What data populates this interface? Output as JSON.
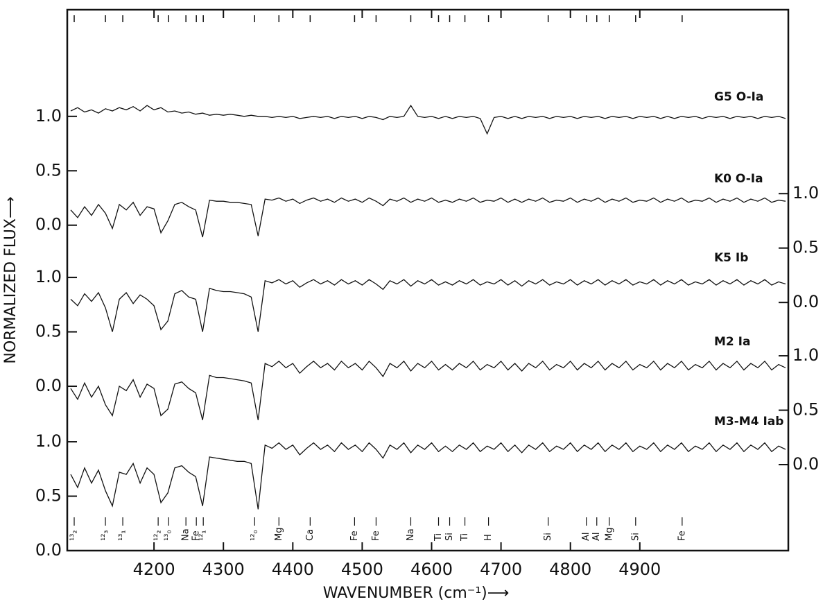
{
  "chart_data": {
    "type": "line",
    "xlabel": "WAVENUMBER (cm⁻¹)⟶",
    "ylabel": "NORMALIZED FLUX⟶",
    "xlim": [
      4075,
      5114
    ],
    "xticks": [
      4200,
      4300,
      4400,
      4500,
      4600,
      4700,
      4800,
      4900
    ],
    "x": [
      4080,
      4090,
      4100,
      4110,
      4120,
      4130,
      4140,
      4150,
      4160,
      4170,
      4180,
      4190,
      4200,
      4210,
      4220,
      4230,
      4240,
      4250,
      4260,
      4270,
      4280,
      4290,
      4300,
      4310,
      4320,
      4330,
      4340,
      4350,
      4360,
      4370,
      4380,
      4390,
      4400,
      4410,
      4420,
      4430,
      4440,
      4450,
      4460,
      4470,
      4480,
      4490,
      4500,
      4510,
      4520,
      4530,
      4540,
      4550,
      4560,
      4570,
      4580,
      4590,
      4600,
      4610,
      4620,
      4630,
      4640,
      4650,
      4660,
      4670,
      4680,
      4690,
      4700,
      4710,
      4720,
      4730,
      4740,
      4750,
      4760,
      4770,
      4780,
      4790,
      4800,
      4810,
      4820,
      4830,
      4840,
      4850,
      4860,
      4870,
      4880,
      4890,
      4900,
      4910,
      4920,
      4930,
      4940,
      4950,
      4960,
      4970,
      4980,
      4990,
      5000,
      5010,
      5020,
      5030,
      5040,
      5050,
      5060,
      5070,
      5080,
      5090,
      5100,
      5110
    ],
    "series": [
      {
        "name": "G5 O-Ia",
        "color": "#111111",
        "axis": "y",
        "ylim": [
          -2.99,
          1.98
        ],
        "yticks": [
          {
            "value": 0,
            "label": "0.0"
          },
          0.5,
          {
            "value": 1,
            "label": "1.0"
          }
        ],
        "values": [
          1.05,
          1.08,
          1.04,
          1.06,
          1.03,
          1.07,
          1.05,
          1.08,
          1.06,
          1.09,
          1.05,
          1.1,
          1.06,
          1.08,
          1.04,
          1.05,
          1.03,
          1.04,
          1.02,
          1.03,
          1.01,
          1.02,
          1.01,
          1.02,
          1.01,
          1.0,
          1.01,
          1.0,
          1.0,
          0.99,
          1.0,
          0.99,
          1.0,
          0.98,
          0.99,
          1.0,
          0.99,
          1.0,
          0.98,
          1.0,
          0.99,
          1.0,
          0.98,
          1.0,
          0.99,
          0.97,
          1.0,
          0.99,
          1.0,
          1.1,
          1.0,
          0.99,
          1.0,
          0.98,
          1.0,
          0.98,
          1.0,
          0.99,
          1.0,
          0.98,
          0.84,
          0.99,
          1.0,
          0.98,
          1.0,
          0.98,
          1.0,
          0.99,
          1.0,
          0.98,
          1.0,
          0.99,
          1.0,
          0.98,
          1.0,
          0.99,
          1.0,
          0.98,
          1.0,
          0.99,
          1.0,
          0.98,
          1.0,
          0.99,
          1.0,
          0.98,
          1.0,
          0.98,
          1.0,
          0.99,
          1.0,
          0.98,
          1.0,
          0.99,
          1.0,
          0.98,
          1.0,
          0.99,
          1.0,
          0.98,
          1.0,
          0.99,
          1.0,
          0.98
        ]
      },
      {
        "name": "K0 O-Ia",
        "color": "#111111",
        "axis": "y2",
        "ylim": [
          -2.28,
          2.69
        ],
        "yticks": [
          {
            "value": 0,
            "label": "0.0"
          },
          0.5,
          {
            "value": 1,
            "label": "1.0"
          }
        ],
        "values": [
          0.85,
          0.78,
          0.88,
          0.8,
          0.9,
          0.82,
          0.68,
          0.9,
          0.85,
          0.92,
          0.8,
          0.88,
          0.86,
          0.64,
          0.75,
          0.9,
          0.92,
          0.88,
          0.85,
          0.6,
          0.94,
          0.93,
          0.93,
          0.92,
          0.92,
          0.91,
          0.9,
          0.61,
          0.95,
          0.94,
          0.96,
          0.93,
          0.95,
          0.91,
          0.94,
          0.96,
          0.93,
          0.95,
          0.92,
          0.96,
          0.93,
          0.95,
          0.92,
          0.96,
          0.93,
          0.89,
          0.95,
          0.93,
          0.96,
          0.92,
          0.95,
          0.93,
          0.96,
          0.92,
          0.94,
          0.92,
          0.95,
          0.93,
          0.96,
          0.92,
          0.94,
          0.93,
          0.96,
          0.92,
          0.95,
          0.92,
          0.95,
          0.93,
          0.96,
          0.92,
          0.94,
          0.93,
          0.96,
          0.92,
          0.95,
          0.93,
          0.96,
          0.92,
          0.95,
          0.93,
          0.96,
          0.92,
          0.94,
          0.93,
          0.96,
          0.92,
          0.95,
          0.93,
          0.96,
          0.92,
          0.94,
          0.93,
          0.96,
          0.92,
          0.95,
          0.93,
          0.96,
          0.92,
          0.95,
          0.93,
          0.96,
          0.92,
          0.94,
          0.93
        ]
      },
      {
        "name": "K5 Ib",
        "color": "#111111",
        "axis": "y",
        "ylim": [
          -1.51,
          3.46
        ],
        "yticks": [
          {
            "value": 0,
            "label": "0.0"
          },
          0.5,
          {
            "value": 1,
            "label": "1.0"
          }
        ],
        "values": [
          0.8,
          0.74,
          0.85,
          0.78,
          0.86,
          0.72,
          0.5,
          0.8,
          0.86,
          0.76,
          0.84,
          0.8,
          0.74,
          0.52,
          0.6,
          0.85,
          0.88,
          0.82,
          0.8,
          0.5,
          0.9,
          0.88,
          0.87,
          0.87,
          0.86,
          0.85,
          0.82,
          0.5,
          0.97,
          0.95,
          0.98,
          0.94,
          0.97,
          0.91,
          0.95,
          0.98,
          0.94,
          0.97,
          0.93,
          0.98,
          0.94,
          0.97,
          0.93,
          0.98,
          0.94,
          0.89,
          0.97,
          0.94,
          0.98,
          0.92,
          0.97,
          0.94,
          0.98,
          0.93,
          0.96,
          0.93,
          0.97,
          0.94,
          0.98,
          0.93,
          0.96,
          0.94,
          0.98,
          0.93,
          0.97,
          0.92,
          0.97,
          0.94,
          0.98,
          0.93,
          0.96,
          0.94,
          0.98,
          0.93,
          0.97,
          0.94,
          0.98,
          0.93,
          0.97,
          0.94,
          0.98,
          0.93,
          0.96,
          0.94,
          0.98,
          0.93,
          0.97,
          0.94,
          0.98,
          0.93,
          0.96,
          0.94,
          0.98,
          0.93,
          0.97,
          0.94,
          0.98,
          0.93,
          0.97,
          0.94,
          0.98,
          0.93,
          0.96,
          0.94
        ]
      },
      {
        "name": "M2 Ia",
        "color": "#111111",
        "axis": "y2",
        "ylim": [
          -0.79,
          4.18
        ],
        "yticks": [
          {
            "value": 0,
            "label": "0.0"
          },
          0.5,
          {
            "value": 1,
            "label": "1.0"
          }
        ],
        "values": [
          0.7,
          0.6,
          0.75,
          0.62,
          0.72,
          0.55,
          0.45,
          0.72,
          0.68,
          0.78,
          0.62,
          0.74,
          0.7,
          0.45,
          0.51,
          0.74,
          0.76,
          0.7,
          0.66,
          0.41,
          0.82,
          0.8,
          0.8,
          0.79,
          0.78,
          0.77,
          0.75,
          0.41,
          0.93,
          0.9,
          0.95,
          0.89,
          0.93,
          0.84,
          0.9,
          0.95,
          0.89,
          0.93,
          0.87,
          0.95,
          0.89,
          0.93,
          0.87,
          0.95,
          0.89,
          0.81,
          0.93,
          0.89,
          0.95,
          0.86,
          0.93,
          0.89,
          0.95,
          0.87,
          0.92,
          0.87,
          0.93,
          0.89,
          0.95,
          0.87,
          0.92,
          0.89,
          0.95,
          0.87,
          0.93,
          0.86,
          0.93,
          0.89,
          0.95,
          0.87,
          0.92,
          0.89,
          0.95,
          0.87,
          0.93,
          0.89,
          0.95,
          0.87,
          0.93,
          0.89,
          0.95,
          0.87,
          0.92,
          0.89,
          0.95,
          0.87,
          0.93,
          0.89,
          0.95,
          0.87,
          0.92,
          0.89,
          0.95,
          0.87,
          0.93,
          0.89,
          0.95,
          0.87,
          0.93,
          0.89,
          0.95,
          0.87,
          0.92,
          0.89
        ]
      },
      {
        "name": "M3-M4 Iab",
        "color": "#111111",
        "axis": "y",
        "ylim": [
          0,
          4.97
        ],
        "yticks": [
          {
            "value": 0,
            "label": "0.0"
          },
          0.5,
          {
            "value": 1,
            "label": "1.0"
          }
        ],
        "values": [
          0.7,
          0.58,
          0.76,
          0.62,
          0.74,
          0.55,
          0.41,
          0.72,
          0.7,
          0.8,
          0.62,
          0.76,
          0.7,
          0.44,
          0.53,
          0.76,
          0.78,
          0.72,
          0.68,
          0.41,
          0.86,
          0.85,
          0.84,
          0.83,
          0.82,
          0.82,
          0.8,
          0.38,
          0.97,
          0.94,
          0.99,
          0.93,
          0.97,
          0.88,
          0.94,
          0.99,
          0.93,
          0.97,
          0.91,
          0.99,
          0.93,
          0.97,
          0.91,
          0.99,
          0.93,
          0.85,
          0.97,
          0.93,
          0.99,
          0.9,
          0.97,
          0.93,
          0.99,
          0.91,
          0.96,
          0.91,
          0.97,
          0.93,
          0.99,
          0.91,
          0.96,
          0.93,
          0.99,
          0.91,
          0.97,
          0.9,
          0.97,
          0.93,
          0.99,
          0.91,
          0.96,
          0.93,
          0.99,
          0.91,
          0.97,
          0.93,
          0.99,
          0.91,
          0.97,
          0.93,
          0.99,
          0.91,
          0.96,
          0.93,
          0.99,
          0.91,
          0.97,
          0.93,
          0.99,
          0.91,
          0.96,
          0.93,
          0.99,
          0.91,
          0.97,
          0.93,
          0.99,
          0.91,
          0.97,
          0.93,
          0.99,
          0.91,
          0.96,
          0.93
        ]
      }
    ],
    "annotations": [
      {
        "label": "¹³₂",
        "x": 4085
      },
      {
        "label": "¹²₃",
        "x": 4130
      },
      {
        "label": "¹³₁",
        "x": 4155
      },
      {
        "label": "¹²₂",
        "x": 4206
      },
      {
        "label": "¹³₀",
        "x": 4221
      },
      {
        "label": "Na",
        "x": 4246
      },
      {
        "label": "Fe",
        "x": 4261
      },
      {
        "label": "¹²₁",
        "x": 4271
      },
      {
        "label": "¹²₀",
        "x": 4345
      },
      {
        "label": "Mg",
        "x": 4380
      },
      {
        "label": "Ca",
        "x": 4425
      },
      {
        "label": "Fe",
        "x": 4489
      },
      {
        "label": "Fe",
        "x": 4520
      },
      {
        "label": "Na",
        "x": 4570
      },
      {
        "label": "Ti",
        "x": 4610
      },
      {
        "label": "Si",
        "x": 4626
      },
      {
        "label": "Ti",
        "x": 4648
      },
      {
        "label": "H",
        "x": 4682
      },
      {
        "label": "Si",
        "x": 4768
      },
      {
        "label": "Al",
        "x": 4823
      },
      {
        "label": "Al",
        "x": 4838
      },
      {
        "label": "Mg",
        "x": 4856
      },
      {
        "label": "Si",
        "x": 4894
      },
      {
        "label": "Fe",
        "x": 4961
      }
    ]
  }
}
